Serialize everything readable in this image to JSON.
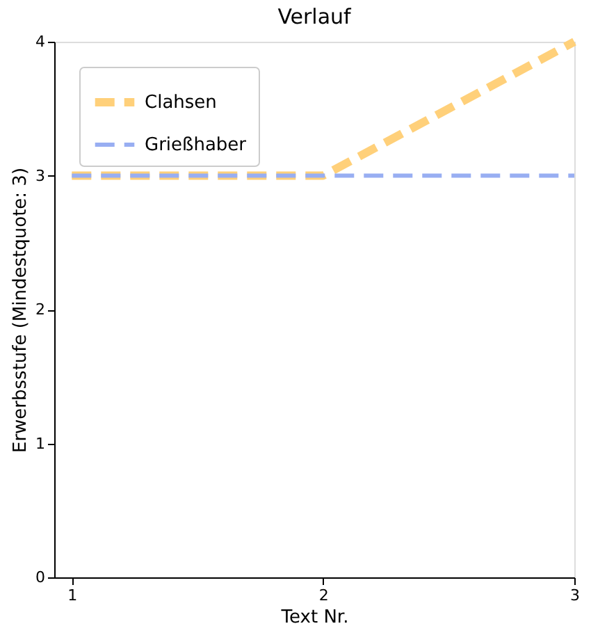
{
  "chart_data": {
    "type": "line",
    "title": "Verlauf",
    "xlabel": "Text Nr.",
    "ylabel": "Erwerbsstufe (Mindestquote: 3)",
    "x": [
      1,
      2,
      3
    ],
    "series": [
      {
        "name": "Clahsen",
        "color": "#ffd07a",
        "values": [
          3,
          3,
          4
        ]
      },
      {
        "name": "Grießhaber",
        "color": "#98aef2",
        "values": [
          3,
          3,
          3
        ]
      }
    ],
    "xlim": [
      0.93,
      3.0
    ],
    "xticks": [
      1,
      2,
      3
    ],
    "ylim": [
      0,
      4
    ],
    "yticks": [
      0,
      1,
      2,
      3,
      4
    ],
    "legend": "top left",
    "grid": false,
    "line_style": "dashed",
    "marker": "none"
  }
}
